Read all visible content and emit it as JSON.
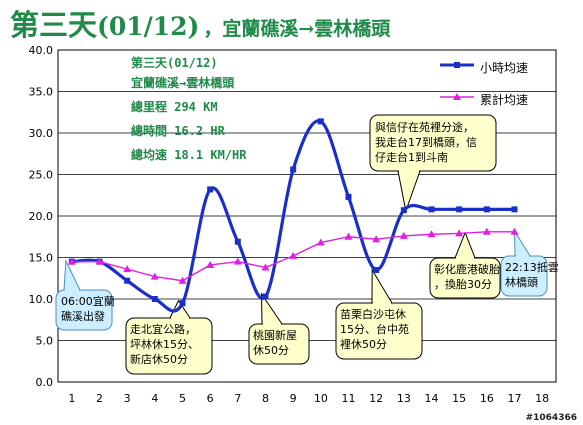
{
  "title": {
    "day": "第三天",
    "date": "(01/12)",
    "route": "，宜蘭礁溪→雲林橋頭"
  },
  "info": {
    "line1": "第三天(01/12)",
    "line2": "宜蘭礁溪→雲林橋頭",
    "line3": "總里程 294 KM",
    "line4": "總時間 16.2 HR",
    "line5": "總均速 18.1 KM/HR"
  },
  "legend": {
    "hourly": "小時均速",
    "cumulative": "累計均速"
  },
  "notes": {
    "start": [
      "06:00宜蘭",
      "礁溪出發"
    ],
    "north_yilan": [
      "走北宜公路，",
      "坪林休15分、",
      "新店休50分"
    ],
    "taoyuan": [
      "桃園新屋",
      "休50分"
    ],
    "miaoli": [
      "苗栗白沙屯休",
      "15分、台中苑",
      "裡休50分"
    ],
    "split": [
      "與信仔在苑裡分途，",
      "我走台17到橋頭，信",
      "仔走台1到斗南"
    ],
    "changhua": [
      "彰化鹿港破胎",
      "，換胎30分"
    ],
    "end": [
      "22:13抵雲",
      "林橋頭"
    ]
  },
  "watermark": "#1064366",
  "chart_data": {
    "type": "line",
    "x": [
      1,
      2,
      3,
      4,
      5,
      6,
      7,
      8,
      9,
      10,
      11,
      12,
      13,
      14,
      15,
      16,
      17
    ],
    "xlim": [
      0,
      18
    ],
    "xticks": [
      "1",
      "2",
      "3",
      "4",
      "5",
      "6",
      "7",
      "8",
      "9",
      "10",
      "11",
      "12",
      "13",
      "14",
      "15",
      "16",
      "17",
      "18"
    ],
    "ylim": [
      0,
      40
    ],
    "yticks": [
      "0.0",
      "5.0",
      "10.0",
      "15.0",
      "20.0",
      "25.0",
      "30.0",
      "35.0",
      "40.0"
    ],
    "grid": true,
    "legend_position": "top-right",
    "series": [
      {
        "name": "小時均速",
        "color": "#1a2fc9",
        "marker": "square",
        "smooth": true,
        "values": [
          14.5,
          14.5,
          12.2,
          10.0,
          9.5,
          23.2,
          16.9,
          10.3,
          25.6,
          31.4,
          22.3,
          13.5,
          20.7,
          20.8,
          20.8,
          20.8,
          20.8
        ]
      },
      {
        "name": "累計均速",
        "color": "#e020e0",
        "marker": "triangle",
        "smooth": false,
        "values": [
          14.5,
          14.5,
          13.6,
          12.7,
          12.2,
          14.1,
          14.5,
          13.8,
          15.2,
          16.8,
          17.5,
          17.2,
          17.6,
          17.8,
          17.9,
          18.1,
          18.1
        ]
      }
    ]
  },
  "colors": {
    "title": "#1f8a4a",
    "note_fill": "#ffffcc",
    "note_stroke": "#000000",
    "start_note_fill": "#cceeff",
    "start_note_stroke": "#4a90c8",
    "grid": "#000000"
  }
}
